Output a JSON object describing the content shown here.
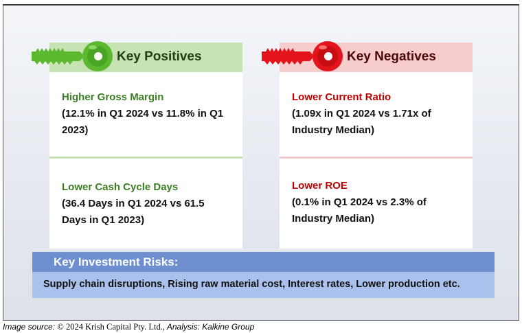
{
  "positives": {
    "header": "Key Positives",
    "accent_color": "#5cb82f",
    "header_bg": "#c6e3b4",
    "items": [
      {
        "title": "Higher Gross Margin",
        "line1": "(12.1% in Q1 2024 vs 11.8% in Q1",
        "line2": "2023)"
      },
      {
        "title": "Lower Cash Cycle Days",
        "line1": "(36.4 Days in Q1 2024 vs 61.5",
        "line2": "Days in Q1 2023)"
      }
    ]
  },
  "negatives": {
    "header": "Key Negatives",
    "accent_color": "#e3141b",
    "header_bg": "#f7cccc",
    "items": [
      {
        "title": "Lower Current Ratio",
        "line1": "(1.09x in Q1 2024 vs 1.71x of",
        "line2": "Industry Median)"
      },
      {
        "title": "Lower ROE",
        "line1": "(0.1% in Q1 2024 vs 2.3% of",
        "line2": "Industry Median)"
      }
    ]
  },
  "risks": {
    "header": "Key Investment Risks:",
    "text": "Supply chain disruptions, Rising raw material cost, Interest rates, Lower production etc."
  },
  "footer": {
    "label": "Image source: ",
    "source": "© 2024 Krish Capital Pty. Ltd.,",
    "analysis": " Analysis: Kalkine Group"
  },
  "icons": {
    "positive": "green-key-icon",
    "negative": "red-key-icon"
  }
}
